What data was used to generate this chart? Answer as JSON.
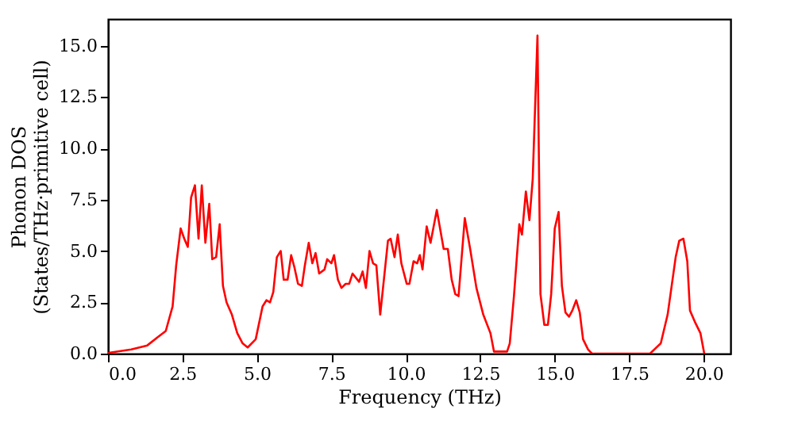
{
  "chart_data": {
    "type": "line",
    "xlabel": "Frequency (THz)",
    "ylabel": "Phonon DOS\n(States/THz·primitive cell)",
    "x": [
      0,
      0.07,
      0.78,
      1.32,
      1.67,
      1.94,
      2.17,
      2.29,
      2.44,
      2.56,
      2.68,
      2.79,
      2.92,
      3.04,
      3.15,
      3.27,
      3.4,
      3.5,
      3.63,
      3.75,
      3.86,
      3.98,
      4.16,
      4.34,
      4.52,
      4.69,
      4.96,
      5.19,
      5.32,
      5.44,
      5.55,
      5.67,
      5.8,
      5.9,
      6.03,
      6.15,
      6.26,
      6.38,
      6.51,
      6.61,
      6.74,
      6.86,
      6.97,
      7.09,
      7.27,
      7.36,
      7.5,
      7.59,
      7.72,
      7.84,
      7.98,
      8.1,
      8.21,
      8.43,
      8.55,
      8.66,
      8.78,
      8.9,
      9.01,
      9.14,
      9.4,
      9.49,
      9.62,
      9.73,
      9.85,
      10.03,
      10.12,
      10.26,
      10.38,
      10.47,
      10.56,
      10.7,
      10.83,
      11.04,
      11.27,
      11.41,
      11.54,
      11.66,
      11.77,
      11.98,
      12.16,
      12.37,
      12.6,
      12.84,
      12.96,
      13.4,
      13.49,
      13.63,
      13.81,
      13.9,
      14.03,
      14.15,
      14.26,
      14.42,
      14.52,
      14.65,
      14.77,
      14.88,
      15.0,
      15.13,
      15.24,
      15.36,
      15.48,
      15.59,
      15.72,
      15.84,
      15.95,
      16.12,
      16.25,
      18.2,
      18.56,
      18.79,
      19.06,
      19.18,
      19.32,
      19.45,
      19.54,
      19.72,
      19.89,
      20.02
    ],
    "series": [
      {
        "color": "#ff0000",
        "values": [
          0,
          0.05,
          0.2,
          0.4,
          0.8,
          1.1,
          2.3,
          4.3,
          6.1,
          5.6,
          5.2,
          7.6,
          8.2,
          5.6,
          8.2,
          5.4,
          7.3,
          4.6,
          4.7,
          6.3,
          3.3,
          2.5,
          1.9,
          1.0,
          0.5,
          0.3,
          0.7,
          2.3,
          2.6,
          2.5,
          3.0,
          4.7,
          5.0,
          3.6,
          3.6,
          4.8,
          4.2,
          3.4,
          3.3,
          4.3,
          5.4,
          4.4,
          4.9,
          3.9,
          4.1,
          4.6,
          4.4,
          4.8,
          3.6,
          3.2,
          3.4,
          3.4,
          3.9,
          3.5,
          4.0,
          3.2,
          5.0,
          4.4,
          4.3,
          1.9,
          5.5,
          5.6,
          4.7,
          5.8,
          4.4,
          3.4,
          3.4,
          4.5,
          4.4,
          4.8,
          4.1,
          6.2,
          5.4,
          7.0,
          5.1,
          5.1,
          3.6,
          2.9,
          2.8,
          6.6,
          5.1,
          3.2,
          1.9,
          1.0,
          0.1,
          0.1,
          0.5,
          2.8,
          6.3,
          5.8,
          7.9,
          6.5,
          8.5,
          15.5,
          2.9,
          1.4,
          1.4,
          2.9,
          6.1,
          6.9,
          3.3,
          2.0,
          1.8,
          2.1,
          2.6,
          2.0,
          0.7,
          0.2,
          0,
          0,
          0.5,
          1.9,
          4.7,
          5.5,
          5.6,
          4.5,
          2.1,
          1.5,
          1.0,
          0
        ]
      }
    ],
    "xlim": [
      0,
      20.9
    ],
    "ylim": [
      0,
      16.3
    ],
    "xticks": [
      {
        "value": 0,
        "label": "0.0"
      },
      {
        "value": 2.5,
        "label": "2.5"
      },
      {
        "value": 5,
        "label": "5.0"
      },
      {
        "value": 7.5,
        "label": "7.5"
      },
      {
        "value": 10,
        "label": "10.0"
      },
      {
        "value": 12.5,
        "label": "12.5"
      },
      {
        "value": 15,
        "label": "15.0"
      },
      {
        "value": 17.5,
        "label": "17.5"
      },
      {
        "value": 20,
        "label": "20.0"
      }
    ],
    "yticks": [
      {
        "value": 0,
        "label": "0.0"
      },
      {
        "value": 2.5,
        "label": "2.5"
      },
      {
        "value": 5,
        "label": "5.0"
      },
      {
        "value": 7.5,
        "label": "7.5"
      },
      {
        "value": 10,
        "label": "10.0"
      },
      {
        "value": 12.5,
        "label": "12.5"
      },
      {
        "value": 15,
        "label": "15.0"
      }
    ],
    "grid": false,
    "line_style": "solid",
    "marker": "none"
  }
}
